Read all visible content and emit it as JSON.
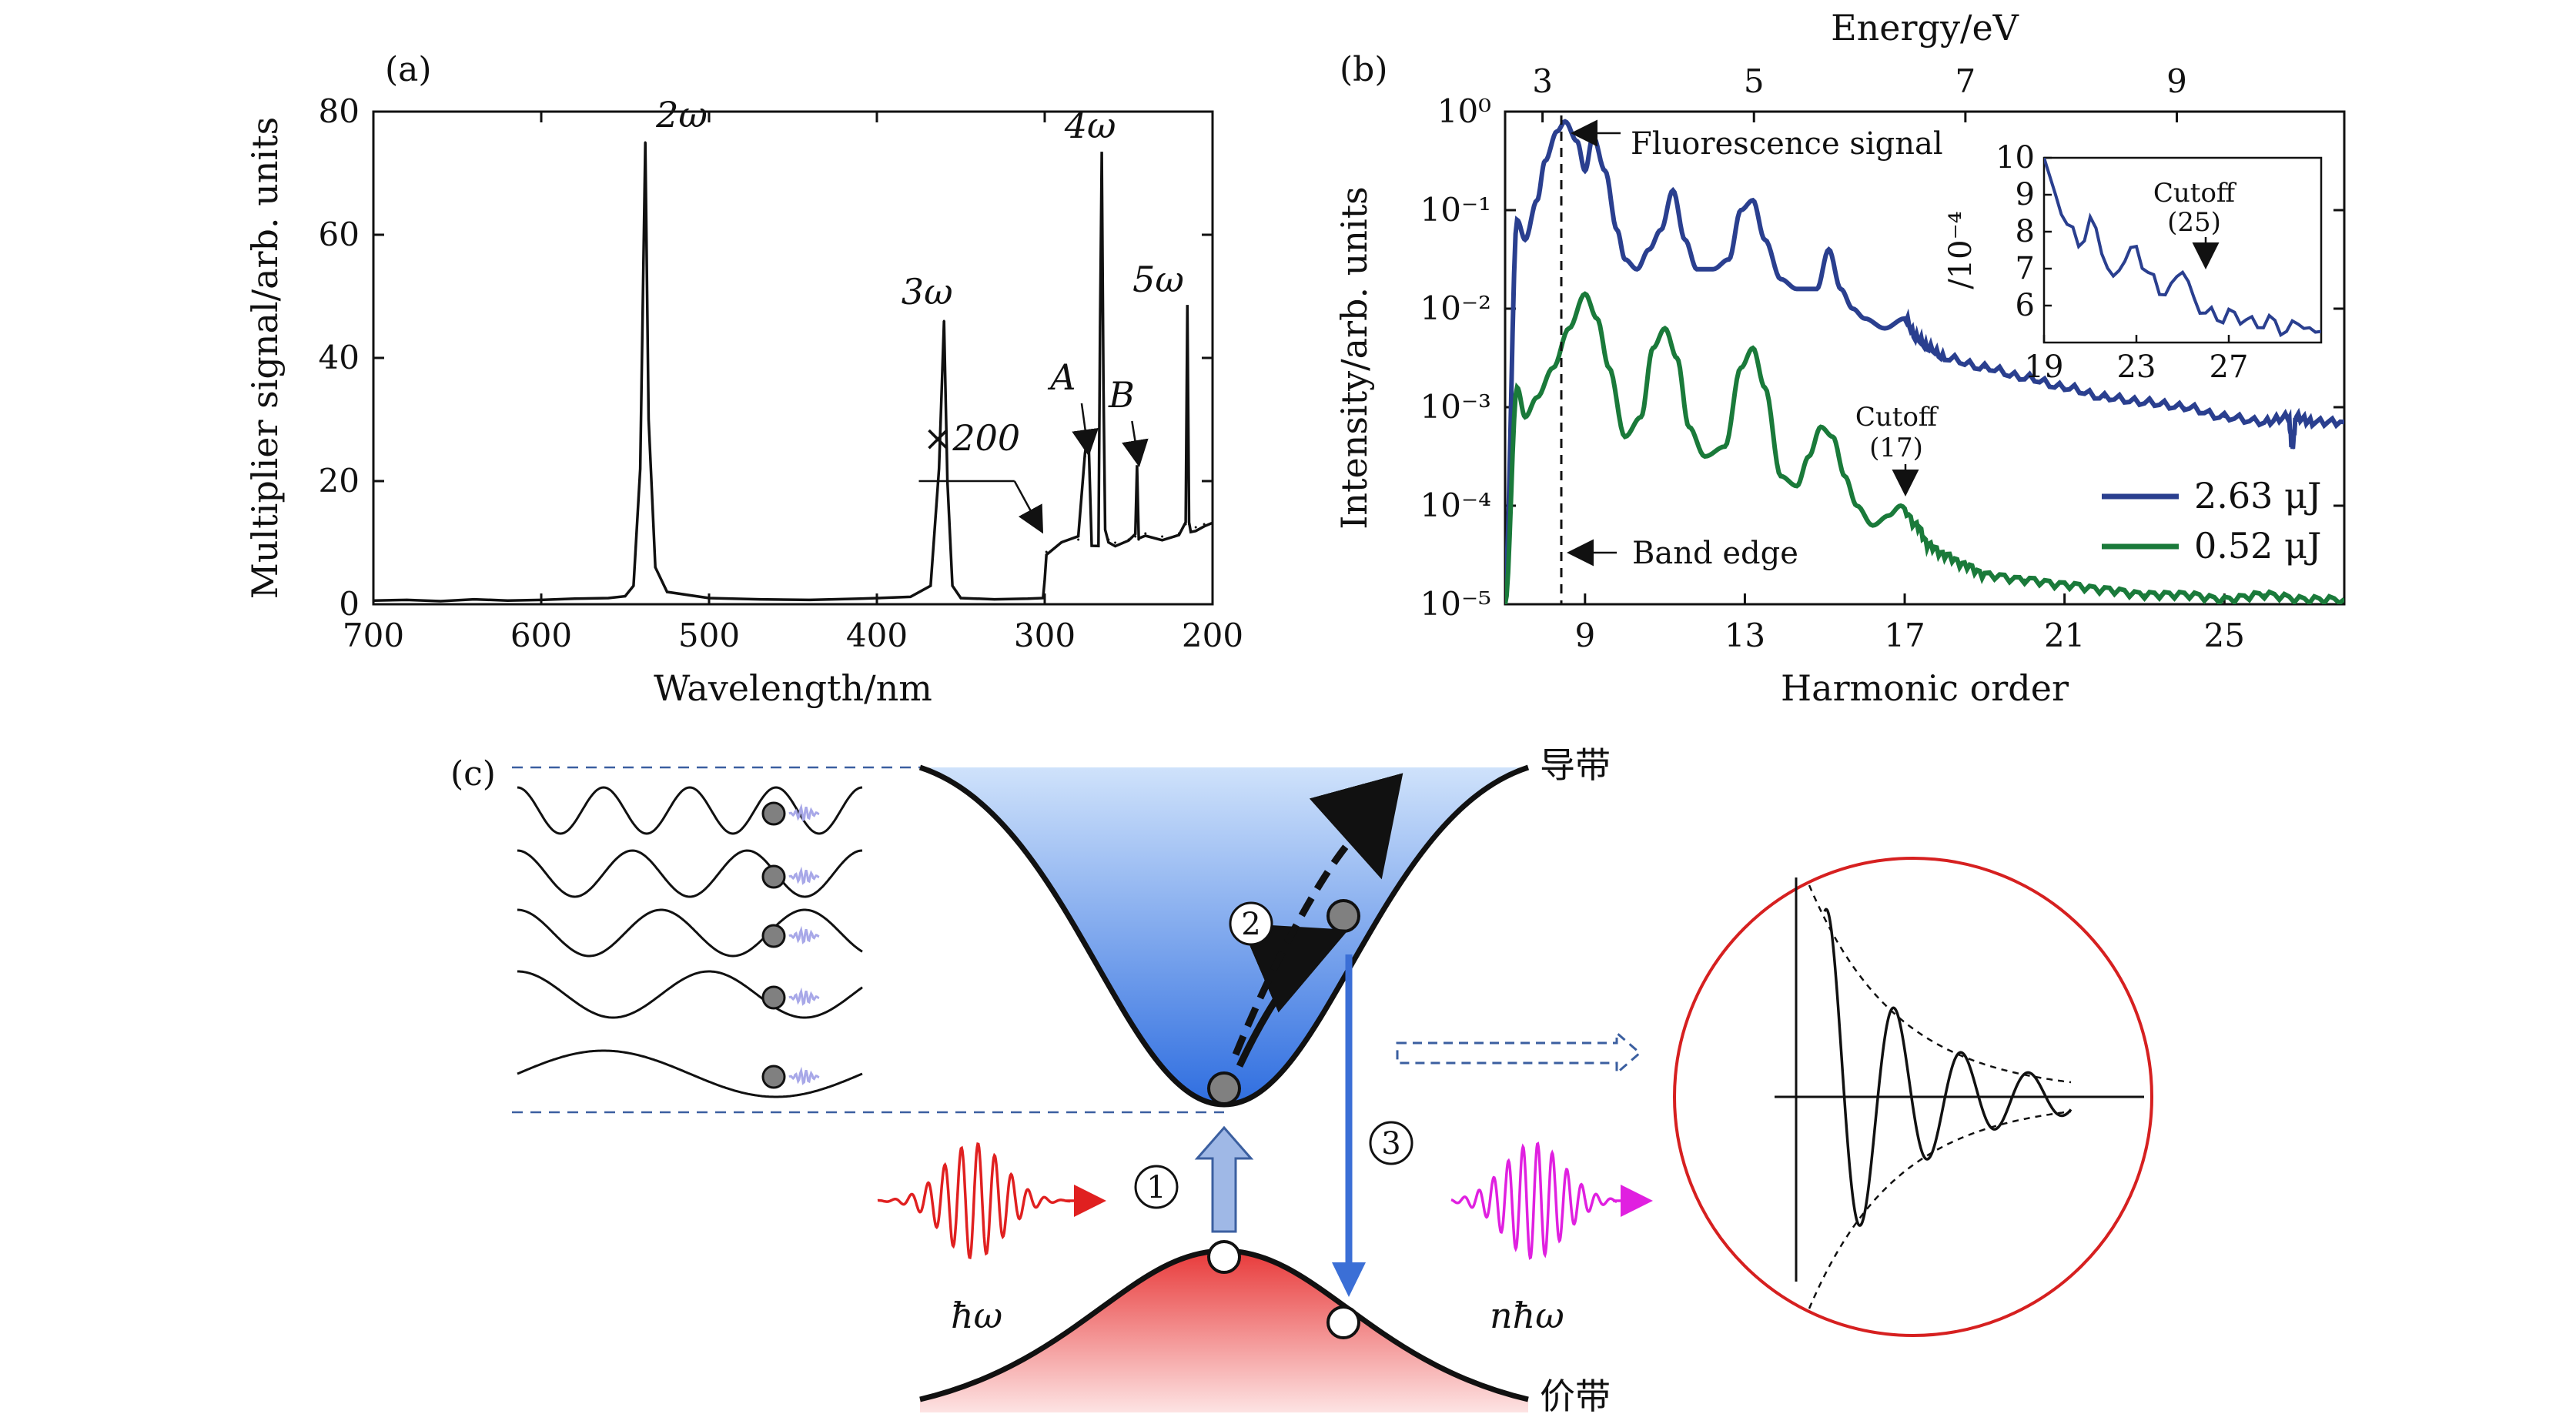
{
  "chart_data": [
    {
      "panel": "(a)",
      "type": "line",
      "xlabel": "Wavelength/nm",
      "ylabel": "Multiplier signal/arb. units",
      "xlim": [
        700,
        200
      ],
      "ylim": [
        0,
        80
      ],
      "x_ticks": [
        "700",
        "600",
        "500",
        "400",
        "300",
        "200"
      ],
      "y_ticks": [
        "0",
        "20",
        "40",
        "60",
        "80"
      ],
      "series": [
        {
          "name": "spectrum",
          "color": "#111111",
          "x": [
            700,
            680,
            660,
            640,
            620,
            600,
            580,
            560,
            550,
            545,
            541,
            538,
            536,
            532,
            525,
            500,
            470,
            440,
            410,
            380,
            368,
            363,
            360,
            358,
            355,
            350,
            330,
            310,
            301,
            300,
            299,
            290,
            280,
            276,
            274,
            272,
            268,
            267,
            266,
            265,
            264,
            262,
            258,
            250,
            246,
            245,
            244,
            240,
            230,
            220,
            216,
            215,
            214,
            213,
            210,
            205,
            200
          ],
          "y": [
            0.6,
            0.7,
            0.5,
            0.8,
            0.6,
            0.7,
            0.9,
            1.0,
            1.3,
            3,
            22,
            75,
            30,
            6,
            2,
            1.0,
            0.8,
            0.7,
            0.9,
            1.2,
            3,
            22,
            46,
            20,
            3,
            1,
            0.8,
            0.9,
            1.0,
            4,
            8.5,
            10,
            10.5,
            24,
            28,
            10,
            10,
            45,
            73,
            35,
            12,
            10.5,
            10,
            10.5,
            11,
            22,
            10.5,
            11.5,
            11,
            11.5,
            13,
            48,
            13,
            12,
            12.5,
            13,
            13
          ]
        }
      ],
      "annotations": [
        {
          "text": "2ω",
          "x": 538,
          "y": 75
        },
        {
          "text": "3ω",
          "x": 360,
          "y": 46
        },
        {
          "text": "4ω",
          "x": 266,
          "y": 73
        },
        {
          "text": "5ω",
          "x": 214,
          "y": 48
        },
        {
          "text": "A",
          "x": 273,
          "y": 28
        },
        {
          "text": "B",
          "x": 245,
          "y": 22
        },
        {
          "text": "×200",
          "x": 300,
          "y": 20
        }
      ]
    },
    {
      "panel": "(b)",
      "type": "line",
      "xlabel": "Harmonic order",
      "ylabel": "Intensity/arb. units",
      "x2label": "Energy/eV",
      "xlim": [
        7,
        28
      ],
      "ylim_log10": [
        -5,
        0
      ],
      "x_ticks": [
        "9",
        "13",
        "17",
        "21",
        "25"
      ],
      "x2_ticks": [
        "3",
        "5",
        "7",
        "9"
      ],
      "y_ticks": [
        "10⁰",
        "10⁻¹",
        "10⁻²",
        "10⁻³",
        "10⁻⁴",
        "10⁻⁵"
      ],
      "series": [
        {
          "name": "2.63 μJ",
          "color": "#2a3f8f",
          "x": [
            7.0,
            7.3,
            7.5,
            7.8,
            8.0,
            8.3,
            8.5,
            8.8,
            9.0,
            9.2,
            9.5,
            9.8,
            10.0,
            10.3,
            10.6,
            10.9,
            11.2,
            11.5,
            11.8,
            12.2,
            12.6,
            12.9,
            13.2,
            13.5,
            13.9,
            14.3,
            14.8,
            15.1,
            15.4,
            15.7,
            16.0,
            16.5,
            17.0,
            17.3,
            17.6,
            18.0,
            19.0,
            20.0,
            21.0,
            22.0,
            23.0,
            24.0,
            25.0,
            26.0,
            26.6,
            26.7,
            26.8,
            27.2,
            28.0
          ],
          "log10y": [
            -4.8,
            -1.1,
            -1.3,
            -0.9,
            -0.5,
            -0.2,
            -0.1,
            -0.3,
            -0.6,
            -0.25,
            -0.6,
            -1.2,
            -1.5,
            -1.6,
            -1.4,
            -1.2,
            -0.8,
            -1.3,
            -1.6,
            -1.6,
            -1.5,
            -1.0,
            -0.9,
            -1.3,
            -1.7,
            -1.8,
            -1.8,
            -1.4,
            -1.8,
            -2.0,
            -2.1,
            -2.2,
            -2.1,
            -2.3,
            -2.4,
            -2.5,
            -2.6,
            -2.7,
            -2.8,
            -2.9,
            -2.95,
            -3.0,
            -3.1,
            -3.15,
            -3.1,
            -3.4,
            -3.1,
            -3.15,
            -3.15
          ]
        },
        {
          "name": "0.52 μJ",
          "color": "#1a7a3a",
          "x": [
            7.0,
            7.3,
            7.5,
            7.8,
            8.2,
            8.6,
            9.0,
            9.3,
            9.6,
            10.0,
            10.4,
            10.7,
            11.0,
            11.3,
            11.6,
            12.0,
            12.5,
            12.9,
            13.2,
            13.5,
            13.9,
            14.3,
            14.6,
            14.9,
            15.2,
            15.5,
            15.8,
            16.2,
            16.6,
            16.9,
            17.3,
            17.6,
            18.0,
            18.5,
            19.0,
            20.0,
            21.0,
            22.0,
            23.0,
            24.0,
            25.0,
            26.0,
            27.0,
            28.0
          ],
          "log10y": [
            -5.0,
            -2.8,
            -3.1,
            -2.9,
            -2.6,
            -2.2,
            -1.85,
            -2.1,
            -2.6,
            -3.3,
            -3.1,
            -2.4,
            -2.2,
            -2.5,
            -3.2,
            -3.5,
            -3.4,
            -2.6,
            -2.4,
            -2.8,
            -3.7,
            -3.8,
            -3.5,
            -3.2,
            -3.3,
            -3.7,
            -4.0,
            -4.2,
            -4.1,
            -4.0,
            -4.2,
            -4.4,
            -4.5,
            -4.6,
            -4.7,
            -4.75,
            -4.8,
            -4.85,
            -4.9,
            -4.9,
            -4.95,
            -4.9,
            -4.95,
            -4.95
          ]
        }
      ],
      "annotations": [
        {
          "text": "Fluorescence signal"
        },
        {
          "text": "Band edge"
        },
        {
          "text": "Cutoff"
        },
        {
          "text": "(17)"
        }
      ],
      "legend_position": "bottom-right",
      "inset": {
        "xlim": [
          19,
          31
        ],
        "ylim": [
          5,
          10
        ],
        "ylabel": "/10⁻⁴",
        "x_ticks": [
          "19",
          "23",
          "27"
        ],
        "y_ticks": [
          "6",
          "7",
          "8",
          "9",
          "10"
        ],
        "annotation": [
          "Cutoff",
          "(25)"
        ],
        "x": [
          19,
          19.5,
          20,
          20.5,
          21,
          21.5,
          22,
          22.5,
          23,
          23.5,
          24,
          24.5,
          25,
          25.5,
          26,
          26.5,
          27,
          27.5,
          28,
          28.5,
          29,
          29.5,
          30,
          30.5,
          31
        ],
        "y": [
          10,
          9,
          8.2,
          7.6,
          8.4,
          7.4,
          6.8,
          7.2,
          7.6,
          6.9,
          6.3,
          6.6,
          6.9,
          6.2,
          5.8,
          5.6,
          5.9,
          5.5,
          5.7,
          5.4,
          5.6,
          5.3,
          5.5,
          5.4,
          5.3
        ]
      }
    }
  ],
  "figure_c": {
    "panel": "(c)",
    "conduction_band": "导带",
    "valence_band": "价带",
    "step_1": "1",
    "step_2": "2",
    "step_3": "3",
    "input_photon": "ħω",
    "output_photon": "nħω",
    "colors": {
      "red": "#e02020",
      "magenta": "#e020e0",
      "blue": "#3b6fd6",
      "circle": "#d62020"
    }
  }
}
